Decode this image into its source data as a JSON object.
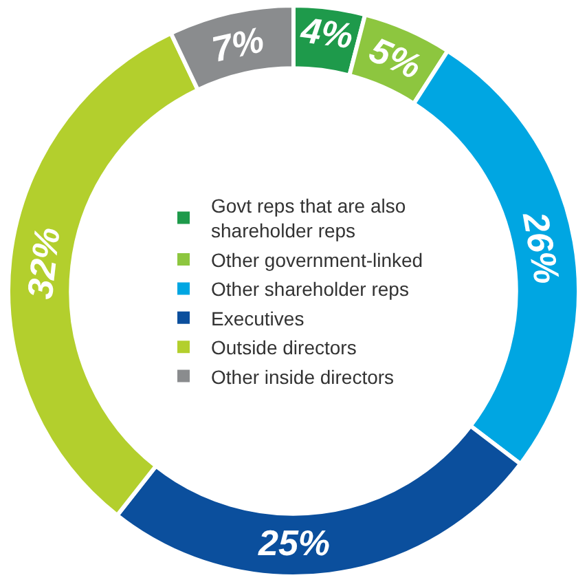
{
  "chart_data": {
    "type": "donut",
    "categories": [
      "Govt reps that are also shareholder reps",
      "Other government-linked",
      "Other shareholder reps",
      "Executives",
      "Outside directors",
      "Other inside directors"
    ],
    "values": [
      4,
      5,
      26,
      25,
      32,
      7
    ],
    "colors": [
      "#1e9a4b",
      "#8dc63f",
      "#00a6e2",
      "#0b4f9d",
      "#b3cf2d",
      "#8a8c8e"
    ],
    "value_labels": [
      "4%",
      "5%",
      "26%",
      "25%",
      "32%",
      "7%"
    ],
    "legend": "center"
  }
}
